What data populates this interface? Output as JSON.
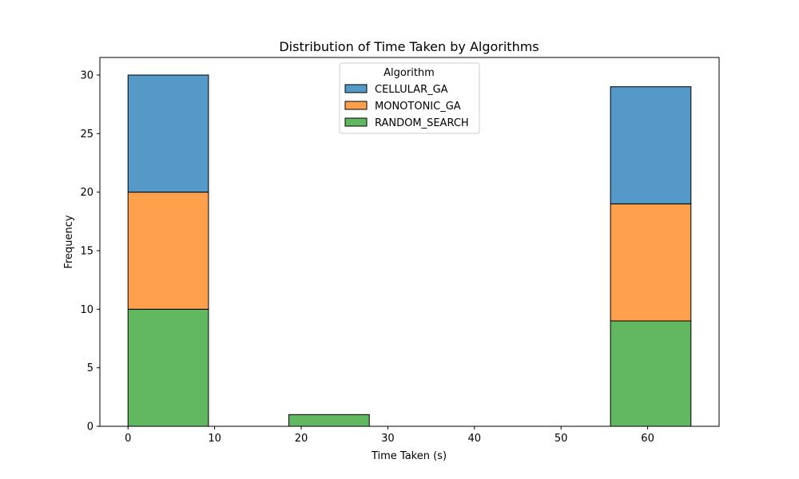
{
  "chart_data": {
    "type": "bar",
    "stacked": true,
    "title": "Distribution of Time Taken by Algorithms",
    "xlabel": "Time Taken (s)",
    "ylabel": "Frequency",
    "xlim": [
      -3.25,
      68.25
    ],
    "ylim": [
      0,
      31.5
    ],
    "xticks": [
      0,
      10,
      20,
      30,
      40,
      50,
      60
    ],
    "yticks": [
      0,
      5,
      10,
      15,
      20,
      25,
      30
    ],
    "bin_edges": [
      0,
      9.29,
      18.57,
      27.86,
      37.14,
      46.43,
      55.71,
      65
    ],
    "grid": false,
    "legend": {
      "title": "Algorithm",
      "placement": "top-center"
    },
    "series": [
      {
        "name": "RANDOM_SEARCH",
        "color": "#61b861",
        "values": [
          10,
          0,
          1,
          0,
          0,
          0,
          9
        ]
      },
      {
        "name": "MONOTONIC_GA",
        "color": "#ffa04c",
        "values": [
          10,
          0,
          0,
          0,
          0,
          0,
          10
        ]
      },
      {
        "name": "CELLULAR_GA",
        "color": "#5599c8",
        "values": [
          10,
          0,
          0,
          0,
          0,
          0,
          10
        ]
      }
    ],
    "legend_order": [
      "CELLULAR_GA",
      "MONOTONIC_GA",
      "RANDOM_SEARCH"
    ]
  }
}
